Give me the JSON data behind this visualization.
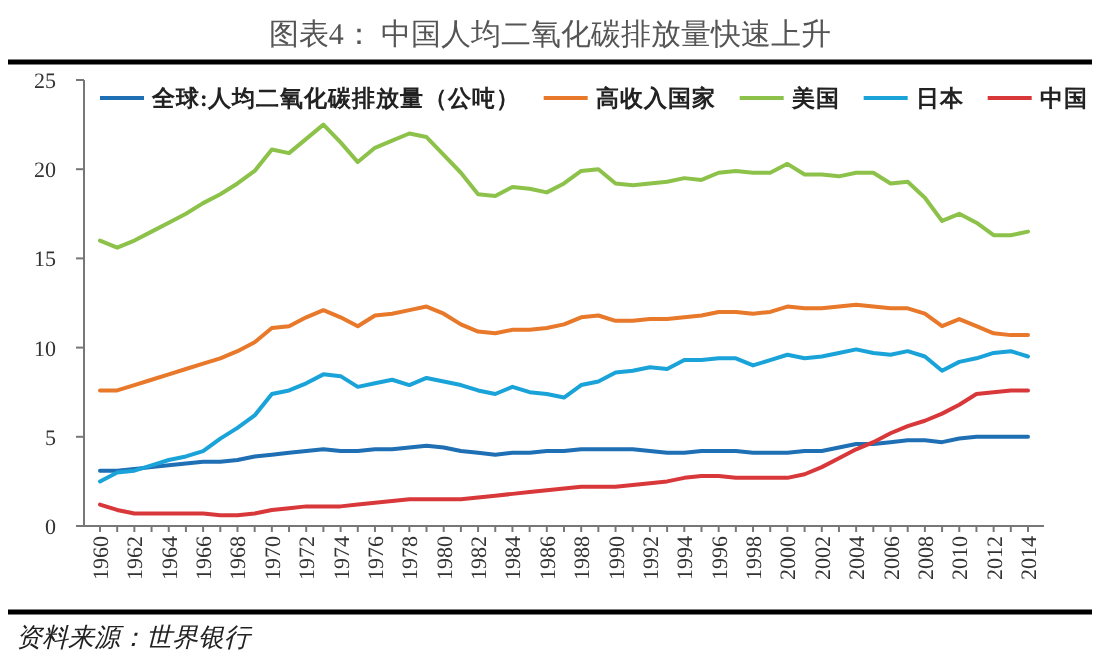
{
  "chart_data": {
    "type": "line",
    "title": "图表4：  中国人均二氧化碳排放量快速上升",
    "annotations": [
      "资料来源：世界银行"
    ],
    "categories": [
      "1960",
      null,
      "1962",
      null,
      "1964",
      null,
      "1966",
      null,
      "1968",
      null,
      "1970",
      null,
      "1972",
      null,
      "1974",
      null,
      "1976",
      null,
      "1978",
      null,
      "1980",
      null,
      "1982",
      null,
      "1984",
      null,
      "1986",
      null,
      "1988",
      null,
      "1990",
      null,
      "1992",
      null,
      "1994",
      null,
      "1996",
      null,
      "1998",
      null,
      "2000",
      null,
      "2002",
      null,
      "2004",
      null,
      "2006",
      null,
      "2008",
      null,
      "2010",
      null,
      "2012",
      null,
      "2014"
    ],
    "series": [
      {
        "name": "全球:人均二氧化碳排放量（公吨）",
        "color": "#1f6fb4",
        "values": [
          3.1,
          3.1,
          3.2,
          3.3,
          3.4,
          3.5,
          3.6,
          3.6,
          3.7,
          3.9,
          4.0,
          4.1,
          4.2,
          4.3,
          4.2,
          4.2,
          4.3,
          4.3,
          4.4,
          4.5,
          4.4,
          4.2,
          4.1,
          4.0,
          4.1,
          4.1,
          4.2,
          4.2,
          4.3,
          4.3,
          4.3,
          4.3,
          4.2,
          4.1,
          4.1,
          4.2,
          4.2,
          4.2,
          4.1,
          4.1,
          4.1,
          4.2,
          4.2,
          4.4,
          4.6,
          4.6,
          4.7,
          4.8,
          4.8,
          4.7,
          4.9,
          5.0,
          5.0,
          5.0,
          5.0
        ]
      },
      {
        "name": "高收入国家",
        "color": "#e8782a",
        "values": [
          7.6,
          7.6,
          7.9,
          8.2,
          8.5,
          8.8,
          9.1,
          9.4,
          9.8,
          10.3,
          11.1,
          11.2,
          11.7,
          12.1,
          11.7,
          11.2,
          11.8,
          11.9,
          12.1,
          12.3,
          11.9,
          11.3,
          10.9,
          10.8,
          11.0,
          11.0,
          11.1,
          11.3,
          11.7,
          11.8,
          11.5,
          11.5,
          11.6,
          11.6,
          11.7,
          11.8,
          12.0,
          12.0,
          11.9,
          12.0,
          12.3,
          12.2,
          12.2,
          12.3,
          12.4,
          12.3,
          12.2,
          12.2,
          11.9,
          11.2,
          11.6,
          11.2,
          10.8,
          10.7,
          10.7
        ]
      },
      {
        "name": "美国",
        "color": "#8dc24a",
        "values": [
          16.0,
          15.6,
          16.0,
          16.5,
          17.0,
          17.5,
          18.1,
          18.6,
          19.2,
          19.9,
          21.1,
          20.9,
          21.7,
          22.5,
          21.5,
          20.4,
          21.2,
          21.6,
          22.0,
          21.8,
          20.8,
          19.8,
          18.6,
          18.5,
          19.0,
          18.9,
          18.7,
          19.2,
          19.9,
          20.0,
          19.2,
          19.1,
          19.2,
          19.3,
          19.5,
          19.4,
          19.8,
          19.9,
          19.8,
          19.8,
          20.3,
          19.7,
          19.7,
          19.6,
          19.8,
          19.8,
          19.2,
          19.3,
          18.4,
          17.1,
          17.5,
          17.0,
          16.3,
          16.3,
          16.5
        ]
      },
      {
        "name": "日本",
        "color": "#1aa3d9",
        "values": [
          2.5,
          3.0,
          3.1,
          3.4,
          3.7,
          3.9,
          4.2,
          4.9,
          5.5,
          6.2,
          7.4,
          7.6,
          8.0,
          8.5,
          8.4,
          7.8,
          8.0,
          8.2,
          7.9,
          8.3,
          8.1,
          7.9,
          7.6,
          7.4,
          7.8,
          7.5,
          7.4,
          7.2,
          7.9,
          8.1,
          8.6,
          8.7,
          8.9,
          8.8,
          9.3,
          9.3,
          9.4,
          9.4,
          9.0,
          9.3,
          9.6,
          9.4,
          9.5,
          9.7,
          9.9,
          9.7,
          9.6,
          9.8,
          9.5,
          8.7,
          9.2,
          9.4,
          9.7,
          9.8,
          9.5
        ]
      },
      {
        "name": "中国",
        "color": "#d9383a",
        "values": [
          1.2,
          0.9,
          0.7,
          0.7,
          0.7,
          0.7,
          0.7,
          0.6,
          0.6,
          0.7,
          0.9,
          1.0,
          1.1,
          1.1,
          1.1,
          1.2,
          1.3,
          1.4,
          1.5,
          1.5,
          1.5,
          1.5,
          1.6,
          1.7,
          1.8,
          1.9,
          2.0,
          2.1,
          2.2,
          2.2,
          2.2,
          2.3,
          2.4,
          2.5,
          2.7,
          2.8,
          2.8,
          2.7,
          2.7,
          2.7,
          2.7,
          2.9,
          3.3,
          3.8,
          4.3,
          4.7,
          5.2,
          5.6,
          5.9,
          6.3,
          6.8,
          7.4,
          7.5,
          7.6,
          7.6
        ]
      }
    ],
    "ylim": [
      0,
      25
    ],
    "yticks": [
      0,
      5,
      10,
      15,
      20,
      25
    ],
    "legend": "top"
  }
}
